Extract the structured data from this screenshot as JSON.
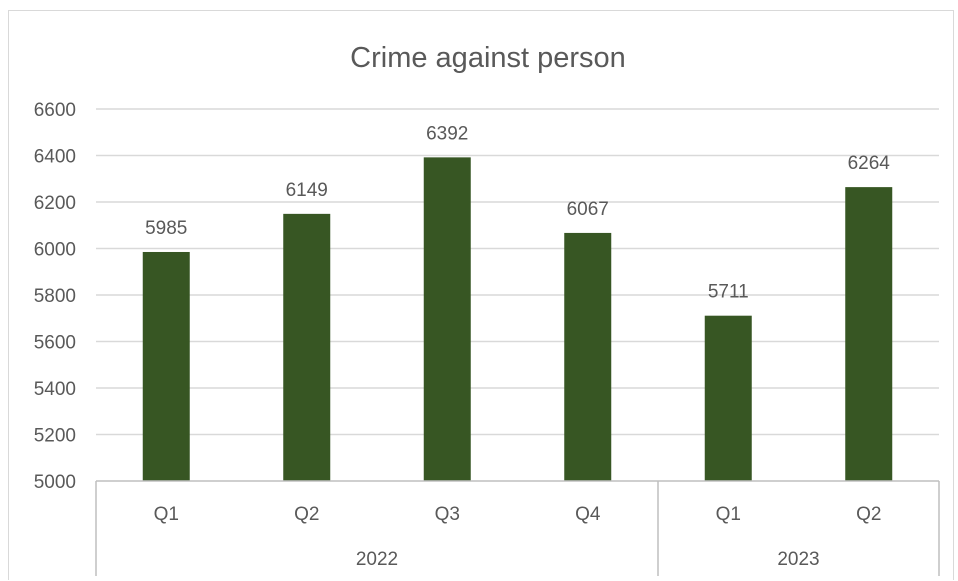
{
  "chart_data": {
    "type": "bar",
    "title": "Crime against person",
    "xlabel": "",
    "ylabel": "",
    "ylim": [
      5000,
      6600
    ],
    "yticks": [
      5000,
      5200,
      5400,
      5600,
      5800,
      6000,
      6200,
      6400,
      6600
    ],
    "grid": true,
    "legend": "none",
    "categories": [
      "Q1",
      "Q2",
      "Q3",
      "Q4",
      "Q1",
      "Q2"
    ],
    "groups": [
      {
        "label": "2022",
        "count": 4
      },
      {
        "label": "2023",
        "count": 2
      }
    ],
    "values": [
      5985,
      6149,
      6392,
      6067,
      5711,
      6264
    ],
    "data_labels": [
      "5985",
      "6149",
      "6392",
      "6067",
      "5711",
      "6264"
    ],
    "colors": {
      "bar": "#375623",
      "grid": "#d9d9d9",
      "axis": "#bfbfbf",
      "text": "#595959"
    }
  }
}
